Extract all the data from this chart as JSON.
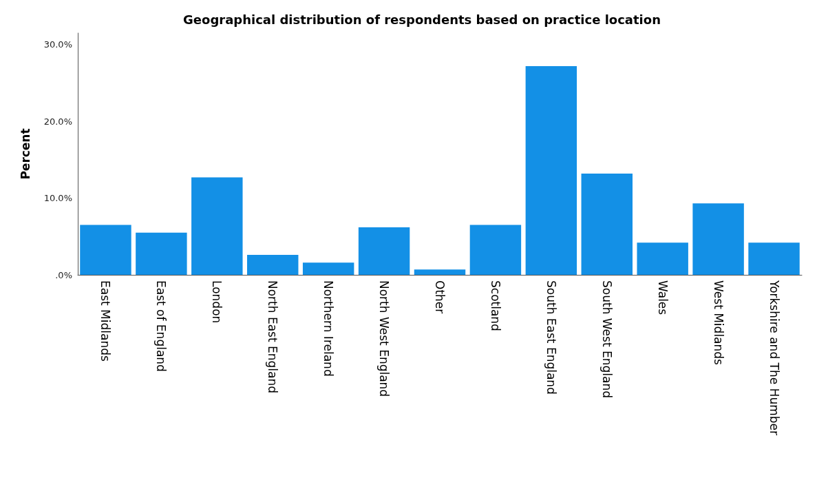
{
  "chart_data": {
    "type": "bar",
    "title": "Geographical distribution of respondents based on practice location",
    "ylabel": "Percent",
    "categories": [
      "East Midlands",
      "East of England",
      "London",
      "North East England",
      "Northern Ireland",
      "North West England",
      "Other",
      "Scotland",
      "South East England",
      "South West England",
      "Wales",
      "West Midlands",
      "Yorkshire and The Humber"
    ],
    "values": [
      6.5,
      5.5,
      12.7,
      2.6,
      1.6,
      6.2,
      0.7,
      6.5,
      27.2,
      13.2,
      4.2,
      9.3,
      4.2
    ],
    "color": "#1390e6",
    "ylim": [
      0,
      31.5
    ],
    "yticks": [
      {
        "value": 0,
        "label": ".0%"
      },
      {
        "value": 10,
        "label": "10.0%"
      },
      {
        "value": 20,
        "label": "20.0%"
      },
      {
        "value": 30,
        "label": "30.0%"
      }
    ],
    "grid": false
  }
}
